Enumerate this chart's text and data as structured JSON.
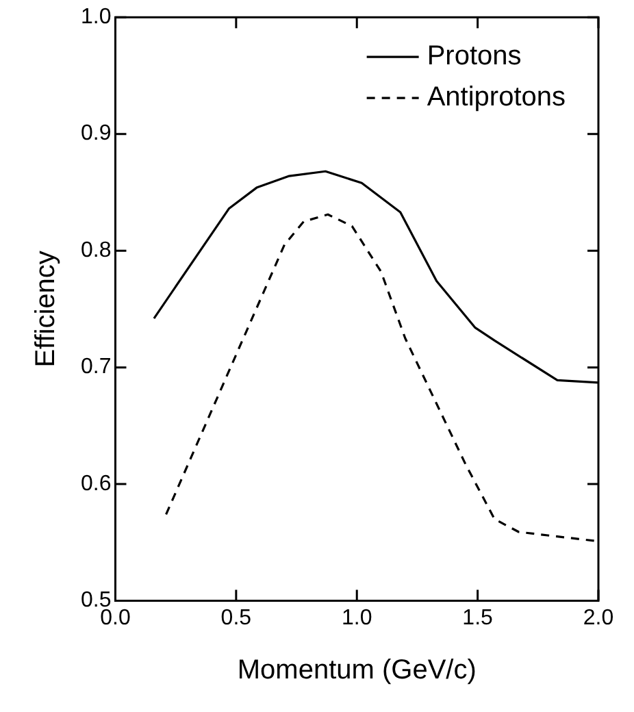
{
  "chart_data": {
    "type": "line",
    "xlabel": "Momentum (GeV/c)",
    "ylabel": "Efficiency",
    "xlim": [
      0,
      2
    ],
    "xticks": [
      {
        "value": 0,
        "label": "0.0"
      },
      0.5,
      {
        "value": 1,
        "label": "1.0"
      },
      1.5,
      {
        "value": 2,
        "label": "2.0"
      }
    ],
    "ylim": [
      0.5,
      1
    ],
    "yticks": [
      0.5,
      0.6,
      0.7,
      0.8,
      0.9,
      {
        "value": 1,
        "label": "1.0"
      }
    ],
    "grid": false,
    "legend": "top right",
    "marker": "none",
    "series": [
      {
        "name": "Protons",
        "color": "#000000",
        "line_style": "solid",
        "x": [
          0.16,
          0.47,
          0.585,
          0.72,
          0.87,
          1.02,
          1.18,
          1.33,
          1.49,
          1.57,
          1.83,
          2.0
        ],
        "values": [
          0.742,
          0.836,
          0.854,
          0.864,
          0.868,
          0.858,
          0.833,
          0.774,
          0.734,
          0.723,
          0.689,
          0.687
        ]
      },
      {
        "name": "Antiprotons",
        "color": "#000000",
        "line_style": "dashed",
        "x": [
          0.21,
          0.53,
          0.7,
          0.78,
          0.88,
          0.98,
          1.1,
          1.2,
          1.45,
          1.57,
          1.67,
          2.0
        ],
        "values": [
          0.574,
          0.725,
          0.805,
          0.825,
          0.831,
          0.821,
          0.782,
          0.725,
          0.617,
          0.57,
          0.559,
          0.551
        ]
      }
    ]
  }
}
